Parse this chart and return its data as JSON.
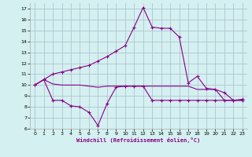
{
  "xlabel": "Windchill (Refroidissement éolien,°C)",
  "x_values": [
    0,
    1,
    2,
    3,
    4,
    5,
    6,
    7,
    8,
    9,
    10,
    11,
    12,
    13,
    14,
    15,
    16,
    17,
    18,
    19,
    20,
    21,
    22,
    23
  ],
  "line1_y": [
    10.0,
    10.5,
    10.1,
    10.0,
    10.0,
    10.0,
    9.9,
    9.8,
    9.9,
    9.9,
    9.9,
    9.9,
    9.9,
    9.9,
    9.9,
    9.9,
    9.9,
    9.9,
    9.6,
    9.6,
    9.6,
    8.6,
    8.6,
    8.6
  ],
  "line2_y": [
    10.0,
    10.5,
    11.0,
    11.2,
    11.4,
    11.6,
    11.8,
    12.2,
    12.6,
    13.1,
    13.6,
    15.3,
    17.1,
    15.3,
    15.2,
    15.2,
    14.4,
    10.2,
    10.8,
    9.7,
    9.6,
    9.3,
    8.6,
    8.7
  ],
  "line3_y": [
    10.0,
    10.5,
    8.6,
    8.6,
    8.1,
    8.0,
    7.5,
    6.3,
    8.3,
    9.8,
    9.9,
    9.9,
    9.9,
    8.6,
    8.6,
    8.6,
    8.6,
    8.6,
    8.6,
    8.6,
    8.6,
    8.6,
    8.6,
    8.6
  ],
  "line_color": "#880088",
  "bg_color": "#d4f0f0",
  "grid_color": "#aabbcc",
  "ylim": [
    6,
    17.5
  ],
  "yticks": [
    6,
    7,
    8,
    9,
    10,
    11,
    12,
    13,
    14,
    15,
    16,
    17
  ],
  "xlim": [
    -0.5,
    23.5
  ],
  "xticks": [
    0,
    1,
    2,
    3,
    4,
    5,
    6,
    7,
    8,
    9,
    10,
    11,
    12,
    13,
    14,
    15,
    16,
    17,
    18,
    19,
    20,
    21,
    22,
    23
  ]
}
